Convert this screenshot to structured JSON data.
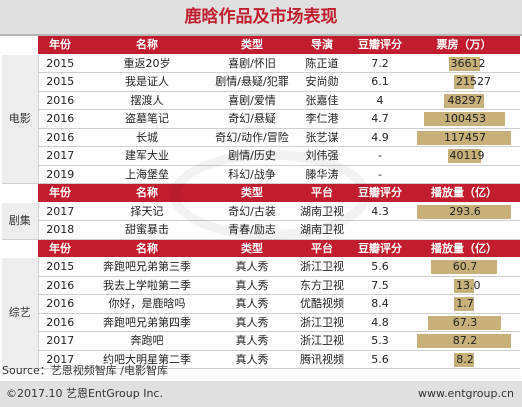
{
  "title": "鹿晗作品及市场表现",
  "movie": {
    "category": "电影",
    "headers": [
      "年份",
      "名称",
      "类型",
      "导演",
      "豆瓣评分",
      "票房（万）"
    ],
    "rows": [
      {
        "year": "2015",
        "name": "重返20岁",
        "genre": "喜剧/怀旧",
        "director": "陈正道",
        "score": "7.2",
        "box": "36612",
        "box_value": 36612
      },
      {
        "year": "2015",
        "name": "我是证人",
        "genre": "剧情/悬疑/犯罪",
        "director": "安尚勋",
        "score": "6.1",
        "box": "21527",
        "box_value": 21527
      },
      {
        "year": "2016",
        "name": "摆渡人",
        "genre": "喜剧/爱情",
        "director": "张嘉佳",
        "score": "4",
        "box": "48297",
        "box_value": 48297
      },
      {
        "year": "2016",
        "name": "盗墓笔记",
        "genre": "奇幻/悬疑",
        "director": "李仁港",
        "score": "4.7",
        "box": "100453",
        "box_value": 100453
      },
      {
        "year": "2016",
        "name": "长城",
        "genre": "奇幻/动作/冒险",
        "director": "张艺谋",
        "score": "4.9",
        "box": "117457",
        "box_value": 117457
      },
      {
        "year": "2017",
        "name": "建军大业",
        "genre": "剧情/历史",
        "director": "刘伟强",
        "score": "-",
        "box": "40119",
        "box_value": 40119
      },
      {
        "year": "2019",
        "name": "上海堡垒",
        "genre": "科幻/战争",
        "director": "滕华涛",
        "score": "-",
        "box": "",
        "box_value": 0
      }
    ],
    "max": 117457
  },
  "drama": {
    "category": "剧集",
    "headers": [
      "年份",
      "名称",
      "类型",
      "平台",
      "豆瓣评分",
      "播放量（亿）"
    ],
    "rows": [
      {
        "year": "2017",
        "name": "择天记",
        "genre": "奇幻/古装",
        "platform": "湖南卫视",
        "score": "4.3",
        "plays": "293.6",
        "plays_value": 293.6
      },
      {
        "year": "2018",
        "name": "甜蜜暴击",
        "genre": "青春/励志",
        "platform": "湖南卫视",
        "score": "",
        "plays": "",
        "plays_value": 0
      }
    ],
    "max": 293.6
  },
  "variety": {
    "category": "综艺",
    "headers": [
      "年份",
      "名称",
      "类型",
      "平台",
      "豆瓣评分",
      "播放量（亿）"
    ],
    "rows": [
      {
        "year": "2015",
        "name": "奔跑吧兄弟第三季",
        "genre": "真人秀",
        "platform": "浙江卫视",
        "score": "5.6",
        "plays": "60.7",
        "plays_value": 60.7
      },
      {
        "year": "2016",
        "name": "我去上学啦第二季",
        "genre": "真人秀",
        "platform": "东方卫视",
        "score": "7.5",
        "plays": "13.0",
        "plays_value": 13.0
      },
      {
        "year": "2016",
        "name": "你好，是鹿晗吗",
        "genre": "真人秀",
        "platform": "优酷视频",
        "score": "8.4",
        "plays": "1.7",
        "plays_value": 1.7
      },
      {
        "year": "2016",
        "name": "奔跑吧兄弟第四季",
        "genre": "真人秀",
        "platform": "浙江卫视",
        "score": "4.8",
        "plays": "67.3",
        "plays_value": 67.3
      },
      {
        "year": "2017",
        "name": "奔跑吧",
        "genre": "真人秀",
        "platform": "浙江卫视",
        "score": "5.3",
        "plays": "87.2",
        "plays_value": 87.2
      },
      {
        "year": "2017",
        "name": "约吧大明星第二季",
        "genre": "真人秀",
        "platform": "腾讯视频",
        "score": "5.6",
        "plays": "8.2",
        "plays_value": 8.2
      }
    ],
    "max": 87.2
  },
  "source": "Source：艺恩视频智库 /电影智库",
  "footer_left": "©2017.10 艺恩EntGroup Inc.",
  "footer_right": "www.entgroup.cn",
  "bar_color": "#c7b07a",
  "header_color": "#c21d2e"
}
